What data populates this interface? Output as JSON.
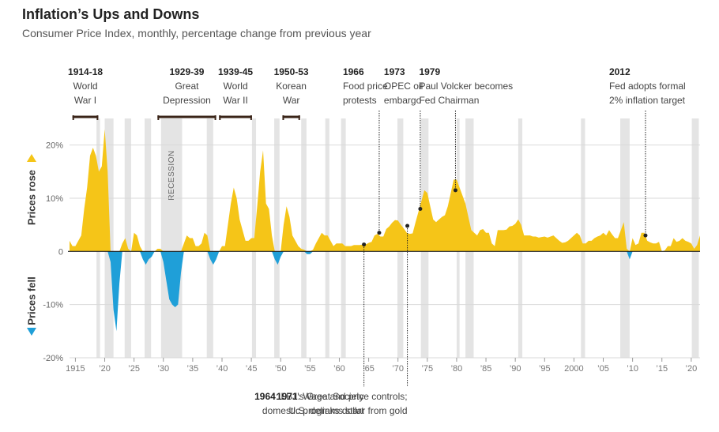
{
  "header": {
    "title": "Inflation’s Ups and Downs",
    "subtitle": "Consumer Price Index, monthly, percentage change from previous year"
  },
  "chart_data": {
    "type": "area",
    "title": "Inflation’s Ups and Downs",
    "subtitle": "Consumer Price Index, monthly, percentage change from previous year",
    "ylabel_top": "Prices rose",
    "ylabel_bottom": "Prices fell",
    "ylim": [
      -20,
      25
    ],
    "xlim": [
      1914,
      2021.5
    ],
    "y_ticks": [
      {
        "value": 20,
        "label": "20%"
      },
      {
        "value": 10,
        "label": "10%"
      },
      {
        "value": 0,
        "label": "0"
      },
      {
        "value": -10,
        "label": "-10%"
      },
      {
        "value": -20,
        "label": "-20%"
      }
    ],
    "x_ticks": [
      {
        "value": 1915,
        "label": "1915"
      },
      {
        "value": 1920,
        "label": "’20"
      },
      {
        "value": 1925,
        "label": "’25"
      },
      {
        "value": 1930,
        "label": "’30"
      },
      {
        "value": 1935,
        "label": "’35"
      },
      {
        "value": 1940,
        "label": "’40"
      },
      {
        "value": 1945,
        "label": "’45"
      },
      {
        "value": 1950,
        "label": "’50"
      },
      {
        "value": 1955,
        "label": "’55"
      },
      {
        "value": 1960,
        "label": "’60"
      },
      {
        "value": 1965,
        "label": "’65"
      },
      {
        "value": 1970,
        "label": "’70"
      },
      {
        "value": 1975,
        "label": "’75"
      },
      {
        "value": 1980,
        "label": "’80"
      },
      {
        "value": 1985,
        "label": "’85"
      },
      {
        "value": 1990,
        "label": "’90"
      },
      {
        "value": 1995,
        "label": "’95"
      },
      {
        "value": 2000,
        "label": "2000"
      },
      {
        "value": 2005,
        "label": "’05"
      },
      {
        "value": 2010,
        "label": "’10"
      },
      {
        "value": 2015,
        "label": "’15"
      },
      {
        "value": 2020,
        "label": "’20"
      }
    ],
    "series": [
      {
        "positive_color": "#f5c518",
        "negative_color": "#1f9fd8",
        "x": [
          1914.0,
          1914.5,
          1915.0,
          1915.5,
          1916.0,
          1916.5,
          1917.0,
          1917.5,
          1918.0,
          1918.5,
          1919.0,
          1919.5,
          1920.0,
          1920.5,
          1921.0,
          1921.5,
          1922.0,
          1922.5,
          1923.0,
          1923.5,
          1924.0,
          1924.5,
          1925.0,
          1925.5,
          1926.0,
          1926.5,
          1927.0,
          1927.5,
          1928.0,
          1928.5,
          1929.0,
          1929.5,
          1930.0,
          1930.5,
          1931.0,
          1931.5,
          1932.0,
          1932.5,
          1933.0,
          1933.5,
          1934.0,
          1934.5,
          1935.0,
          1935.5,
          1936.0,
          1936.5,
          1937.0,
          1937.5,
          1938.0,
          1938.5,
          1939.0,
          1939.5,
          1940.0,
          1940.5,
          1941.0,
          1941.5,
          1942.0,
          1942.5,
          1943.0,
          1943.5,
          1944.0,
          1944.5,
          1945.0,
          1945.5,
          1946.0,
          1946.5,
          1947.0,
          1947.5,
          1948.0,
          1948.5,
          1949.0,
          1949.5,
          1950.0,
          1950.5,
          1951.0,
          1951.5,
          1952.0,
          1952.5,
          1953.0,
          1953.5,
          1954.0,
          1954.5,
          1955.0,
          1955.5,
          1956.0,
          1956.5,
          1957.0,
          1957.5,
          1958.0,
          1958.5,
          1959.0,
          1959.5,
          1960.0,
          1960.5,
          1961.0,
          1961.5,
          1962.0,
          1962.5,
          1963.0,
          1963.5,
          1964.0,
          1964.5,
          1965.0,
          1965.5,
          1966.0,
          1966.5,
          1967.0,
          1967.5,
          1968.0,
          1968.5,
          1969.0,
          1969.5,
          1970.0,
          1970.5,
          1971.0,
          1971.5,
          1972.0,
          1972.5,
          1973.0,
          1973.5,
          1974.0,
          1974.5,
          1975.0,
          1975.5,
          1976.0,
          1976.5,
          1977.0,
          1977.5,
          1978.0,
          1978.5,
          1979.0,
          1979.5,
          1980.0,
          1980.5,
          1981.0,
          1981.5,
          1982.0,
          1982.5,
          1983.0,
          1983.5,
          1984.0,
          1984.5,
          1985.0,
          1985.5,
          1986.0,
          1986.5,
          1987.0,
          1987.5,
          1988.0,
          1988.5,
          1989.0,
          1989.5,
          1990.0,
          1990.5,
          1991.0,
          1991.5,
          1992.0,
          1992.5,
          1993.0,
          1993.5,
          1994.0,
          1994.5,
          1995.0,
          1995.5,
          1996.0,
          1996.5,
          1997.0,
          1997.5,
          1998.0,
          1998.5,
          1999.0,
          1999.5,
          2000.0,
          2000.5,
          2001.0,
          2001.5,
          2002.0,
          2002.5,
          2003.0,
          2003.5,
          2004.0,
          2004.5,
          2005.0,
          2005.5,
          2006.0,
          2006.5,
          2007.0,
          2007.5,
          2008.0,
          2008.5,
          2009.0,
          2009.5,
          2010.0,
          2010.5,
          2011.0,
          2011.5,
          2012.0,
          2012.5,
          2013.0,
          2013.5,
          2014.0,
          2014.5,
          2015.0,
          2015.5,
          2016.0,
          2016.5,
          2017.0,
          2017.5,
          2018.0,
          2018.5,
          2019.0,
          2019.5,
          2020.0,
          2020.5,
          2021.0,
          2021.5
        ],
        "values": [
          2.0,
          1.0,
          1.0,
          2.0,
          3.0,
          8.0,
          12.0,
          18.0,
          19.5,
          18.0,
          15.0,
          16.0,
          23.0,
          15.0,
          -2.0,
          -11.0,
          -15.0,
          -6.0,
          1.5,
          2.5,
          0.5,
          0.0,
          3.5,
          3.0,
          1.0,
          -1.5,
          -2.5,
          -1.5,
          -1.0,
          0.0,
          0.5,
          0.5,
          -2.0,
          -5.5,
          -9.0,
          -10.0,
          -10.5,
          -10.0,
          -4.0,
          1.5,
          3.0,
          2.5,
          2.5,
          1.0,
          1.0,
          1.5,
          3.5,
          3.0,
          -1.5,
          -2.5,
          -1.5,
          0.0,
          1.0,
          1.0,
          5.0,
          9.0,
          12.0,
          10.0,
          6.0,
          4.0,
          2.0,
          2.0,
          2.5,
          2.5,
          8.5,
          15.0,
          19.0,
          9.0,
          8.0,
          3.0,
          -1.5,
          -2.5,
          -1.0,
          5.0,
          8.5,
          6.5,
          3.0,
          2.0,
          1.0,
          0.5,
          0.3,
          -0.5,
          -0.5,
          0.3,
          1.5,
          2.5,
          3.5,
          3.0,
          3.0,
          2.0,
          1.0,
          1.5,
          1.5,
          1.5,
          1.0,
          1.0,
          1.0,
          1.2,
          1.2,
          1.2,
          1.3,
          1.3,
          1.6,
          1.8,
          3.0,
          3.3,
          2.8,
          2.8,
          4.2,
          4.7,
          5.4,
          5.9,
          5.8,
          5.0,
          4.3,
          3.5,
          3.3,
          3.4,
          5.5,
          7.5,
          9.5,
          11.5,
          11.0,
          8.5,
          6.0,
          5.5,
          6.0,
          6.5,
          6.8,
          8.5,
          11.0,
          13.5,
          13.5,
          12.0,
          10.5,
          9.0,
          6.5,
          4.0,
          3.5,
          3.0,
          4.0,
          4.2,
          3.5,
          3.5,
          1.5,
          1.0,
          4.0,
          4.0,
          4.0,
          4.1,
          4.7,
          4.8,
          5.2,
          6.0,
          5.0,
          3.0,
          3.0,
          3.0,
          2.8,
          2.8,
          2.6,
          2.7,
          2.8,
          2.6,
          2.8,
          3.0,
          2.5,
          2.0,
          1.6,
          1.7,
          2.0,
          2.5,
          3.0,
          3.5,
          3.0,
          1.5,
          1.5,
          2.0,
          2.0,
          2.5,
          2.8,
          3.0,
          3.5,
          3.0,
          4.0,
          3.2,
          2.5,
          2.5,
          4.0,
          5.5,
          0.5,
          -1.5,
          2.5,
          1.2,
          1.5,
          3.5,
          3.5,
          2.0,
          1.7,
          1.5,
          1.5,
          1.8,
          0.0,
          0.2,
          1.0,
          1.0,
          2.5,
          1.8,
          2.0,
          2.5,
          2.0,
          1.8,
          1.5,
          0.5,
          1.2,
          3.0
        ]
      }
    ],
    "recessions": [
      [
        1918.6,
        1919.2
      ],
      [
        1920.0,
        1921.5
      ],
      [
        1923.4,
        1924.5
      ],
      [
        1926.8,
        1927.9
      ],
      [
        1929.6,
        1933.2
      ],
      [
        1937.4,
        1938.5
      ],
      [
        1945.1,
        1945.8
      ],
      [
        1948.9,
        1949.8
      ],
      [
        1953.5,
        1954.4
      ],
      [
        1957.6,
        1958.3
      ],
      [
        1960.3,
        1961.1
      ],
      [
        1969.9,
        1970.9
      ],
      [
        1973.9,
        1975.2
      ],
      [
        1980.0,
        1980.5
      ],
      [
        1981.5,
        1982.9
      ],
      [
        1990.5,
        1991.2
      ],
      [
        2001.2,
        2001.9
      ],
      [
        2007.9,
        2009.5
      ],
      [
        2020.1,
        2021.3
      ]
    ],
    "recession_label": "RECESSION",
    "periods": [
      {
        "x0": 1914.5,
        "x1": 1918.9,
        "year": "1914-18",
        "text": [
          "World",
          "War I"
        ]
      },
      {
        "x0": 1929.0,
        "x1": 1939.0,
        "year": "1929-39",
        "text": [
          "Great",
          "Depression"
        ]
      },
      {
        "x0": 1939.5,
        "x1": 1945.1,
        "year": "1939-45",
        "text": [
          "World",
          "War II"
        ]
      },
      {
        "x0": 1950.3,
        "x1": 1953.3,
        "year": "1950-53",
        "text": [
          "Korean",
          "War"
        ]
      }
    ],
    "annotations_top": [
      {
        "x": 1966.8,
        "y": 3.5,
        "year": "1966",
        "text": [
          "Food price",
          "protests"
        ]
      },
      {
        "x": 1973.8,
        "y": 8.0,
        "year": "1973",
        "text": [
          "OPEC oil",
          "embargo"
        ]
      },
      {
        "x": 1979.8,
        "y": 11.5,
        "year": "1979",
        "text": [
          "Paul Volcker becomes",
          "Fed Chairman"
        ]
      },
      {
        "x": 2012.2,
        "y": 3.0,
        "year": "2012",
        "text": [
          "Fed adopts formal",
          "2% inflation target"
        ]
      }
    ],
    "annotations_bottom": [
      {
        "x": 1964.2,
        "y": 1.3,
        "year": "1964",
        "text": [
          "LBJ’s Great Society",
          "domestic programs start"
        ]
      },
      {
        "x": 1971.6,
        "y": 4.8,
        "year": "1971",
        "text": [
          "Wage and price controls;",
          "U.S. delinks dollar from gold"
        ]
      }
    ]
  }
}
